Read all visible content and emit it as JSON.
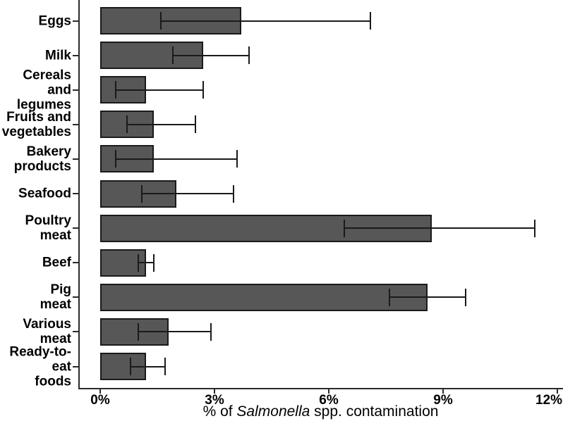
{
  "chart_data": {
    "type": "bar",
    "orientation": "horizontal",
    "title": "",
    "xlabel": "% of Salmonella spp. contamination",
    "xlabel_parts": {
      "prefix": "% of ",
      "italic": "Salmonella",
      "suffix": " spp. contamination"
    },
    "categories": [
      "Eggs",
      "Milk",
      "Cereals and\nlegumes",
      "Fruits and\nvegetables",
      "Bakery\nproducts",
      "Seafood",
      "Poultry\nmeat",
      "Beef",
      "Pig\nmeat",
      "Various\nmeat",
      "Ready-to-eat\nfoods"
    ],
    "values": [
      3.7,
      2.7,
      1.2,
      1.4,
      1.4,
      2.0,
      8.7,
      1.2,
      8.6,
      1.8,
      1.2
    ],
    "error_low": [
      1.6,
      1.9,
      0.4,
      0.7,
      0.4,
      1.1,
      6.4,
      1.0,
      7.6,
      1.0,
      0.8
    ],
    "error_high": [
      7.1,
      3.9,
      2.7,
      2.5,
      3.6,
      3.5,
      11.4,
      1.4,
      9.6,
      2.9,
      1.7
    ],
    "xlim": [
      0,
      12
    ],
    "xticks": [
      0,
      3,
      6,
      9,
      12
    ],
    "xtick_labels": [
      "0%",
      "3%",
      "6%",
      "9%",
      "12%"
    ],
    "unit": "%",
    "bar_color": "#575757",
    "bar_border_color": "#1a1a1a",
    "error_bar_color": "#1a1a1a",
    "axis_color": "#2b2b2b",
    "grid": false,
    "legend": false
  }
}
